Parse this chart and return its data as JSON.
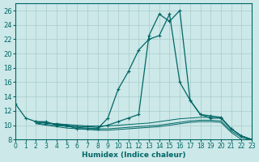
{
  "xlabel": "Humidex (Indice chaleur)",
  "bg_color": "#cce8e8",
  "grid_color": "#aacccc",
  "line_color": "#006666",
  "xlim": [
    0,
    23
  ],
  "ylim": [
    8,
    27
  ],
  "yticks": [
    8,
    10,
    12,
    14,
    16,
    18,
    20,
    22,
    24,
    26
  ],
  "xticks": [
    0,
    1,
    2,
    3,
    4,
    5,
    6,
    7,
    8,
    9,
    10,
    11,
    12,
    13,
    14,
    15,
    16,
    17,
    18,
    19,
    20,
    21,
    22,
    23
  ],
  "line1_x": [
    0,
    1,
    2,
    3,
    4,
    5,
    6,
    7,
    8,
    9,
    10,
    11,
    12,
    13,
    14,
    15,
    16,
    17,
    18,
    19,
    20,
    21,
    22,
    23
  ],
  "line1_y": [
    13,
    11,
    10.5,
    10.5,
    10,
    10,
    9.5,
    9.5,
    9.5,
    11,
    15,
    17.5,
    20.5,
    22,
    22.5,
    25.5,
    16,
    13.5,
    11.5,
    11,
    11,
    9.5,
    8.5,
    8
  ],
  "line2_x": [
    0,
    1,
    2,
    3,
    4,
    5,
    6,
    7,
    8,
    9,
    10,
    11,
    12,
    13,
    14,
    15,
    16,
    17,
    18,
    19,
    20,
    21,
    22,
    23
  ],
  "line2_y": [
    null,
    null,
    10.5,
    10.3,
    10.2,
    10.0,
    9.8,
    9.8,
    9.7,
    10.0,
    10.5,
    11.0,
    11.5,
    22.5,
    25.5,
    24.5,
    26.0,
    13.5,
    11.5,
    11.3,
    11.1,
    9.5,
    8.5,
    8.0
  ],
  "line3_x": [
    2,
    3,
    4,
    5,
    6,
    7,
    8,
    9,
    10,
    11,
    12,
    13,
    14,
    15,
    16,
    17,
    18,
    19,
    20,
    21,
    22,
    23
  ],
  "line3_y": [
    10.4,
    10.3,
    10.2,
    10.1,
    10.0,
    9.9,
    9.9,
    9.9,
    10.0,
    10.1,
    10.2,
    10.3,
    10.5,
    10.7,
    10.9,
    11.0,
    11.1,
    11.1,
    11.0,
    9.5,
    8.5,
    8.0
  ],
  "line4_x": [
    2,
    3,
    4,
    5,
    6,
    7,
    8,
    9,
    10,
    11,
    12,
    13,
    14,
    15,
    16,
    17,
    18,
    19,
    20,
    21,
    22,
    23
  ],
  "line4_y": [
    10.3,
    10.1,
    10.0,
    9.8,
    9.7,
    9.6,
    9.5,
    9.5,
    9.6,
    9.7,
    9.8,
    9.9,
    10.0,
    10.2,
    10.4,
    10.6,
    10.7,
    10.7,
    10.6,
    9.2,
    8.3,
    7.9
  ],
  "line5_x": [
    2,
    3,
    4,
    5,
    6,
    7,
    8,
    9,
    10,
    11,
    12,
    13,
    14,
    15,
    16,
    17,
    18,
    19,
    20,
    21,
    22,
    23
  ],
  "line5_y": [
    10.2,
    10.0,
    9.8,
    9.6,
    9.5,
    9.4,
    9.3,
    9.3,
    9.4,
    9.5,
    9.6,
    9.7,
    9.8,
    10.0,
    10.2,
    10.4,
    10.5,
    10.5,
    10.4,
    9.0,
    8.0,
    7.5
  ]
}
